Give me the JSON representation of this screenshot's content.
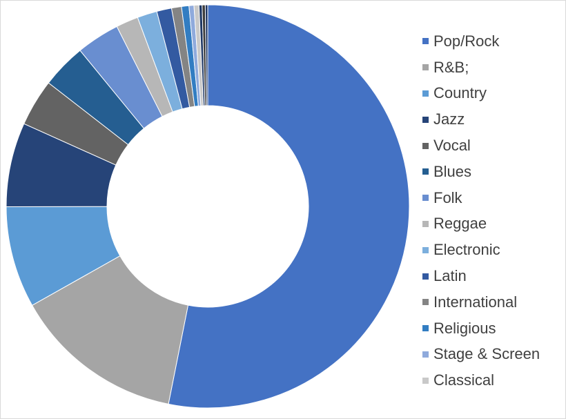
{
  "chart_data": {
    "type": "pie",
    "donut": true,
    "title": "",
    "legend_position": "right",
    "categories": [
      "Pop/Rock",
      "R&B;",
      "Country",
      "Jazz",
      "Vocal",
      "Blues",
      "Folk",
      "Reggae",
      "Electronic",
      "Latin",
      "International",
      "Religious",
      "Stage & Screen",
      "Classical"
    ],
    "values": [
      53.5,
      13.8,
      8.2,
      6.8,
      3.8,
      3.6,
      3.5,
      1.8,
      1.6,
      1.2,
      0.8,
      0.6,
      0.4,
      0.4
    ],
    "extra_small_slices": [
      0.25,
      0.25,
      0.2
    ],
    "colors": [
      "#4472C4",
      "#A5A5A5",
      "#5B9BD5",
      "#264478",
      "#636363",
      "#255E91",
      "#698ED0",
      "#B7B7B7",
      "#7CAFDD",
      "#335AA1",
      "#848484",
      "#327DC2",
      "#8FAADC",
      "#C9C9C9"
    ],
    "extra_small_colors": [
      "#1F3864",
      "#3B3B3B",
      "#203864"
    ]
  }
}
